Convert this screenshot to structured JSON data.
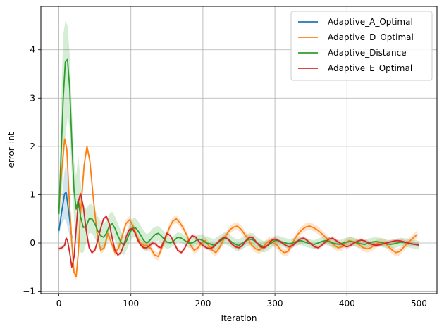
{
  "chart_data": {
    "type": "line",
    "title": "",
    "xlabel": "Iteration",
    "ylabel": "error_int",
    "xlim": [
      -25,
      525
    ],
    "ylim": [
      -1.05,
      4.9
    ],
    "xticks": [
      0,
      100,
      200,
      300,
      400,
      500
    ],
    "yticks": [
      -1,
      0,
      1,
      2,
      3,
      4
    ],
    "grid": true,
    "legend_position": "top-right",
    "series": [
      {
        "name": "Adaptive_A_Optimal",
        "color": "#1f77b4",
        "x": [
          0,
          4,
          8,
          10,
          14,
          18
        ],
        "y": [
          0.25,
          0.65,
          1.02,
          1.05,
          0.6,
          0.1
        ],
        "band_lower": [
          0.15,
          0.4,
          0.5,
          0.45,
          0.2,
          -0.1
        ],
        "band_upper": [
          0.35,
          0.9,
          1.5,
          1.65,
          1.0,
          0.3
        ]
      },
      {
        "name": "Adaptive_D_Optimal",
        "color": "#ff7f0e",
        "x": [
          0,
          4,
          8,
          11,
          14,
          18,
          21,
          24,
          27,
          30,
          35,
          39,
          43,
          48,
          53,
          58,
          63,
          68,
          73,
          78,
          83,
          88,
          93,
          98,
          103,
          108,
          113,
          118,
          123,
          128,
          133,
          138,
          143,
          148,
          153,
          158,
          163,
          168,
          173,
          178,
          183,
          188,
          193,
          198,
          203,
          208,
          213,
          218,
          223,
          228,
          233,
          238,
          243,
          248,
          253,
          258,
          263,
          268,
          273,
          278,
          283,
          288,
          293,
          298,
          303,
          308,
          313,
          318,
          323,
          328,
          333,
          338,
          343,
          348,
          353,
          358,
          363,
          368,
          373,
          378,
          383,
          388,
          393,
          398,
          403,
          408,
          413,
          418,
          423,
          428,
          433,
          438,
          443,
          448,
          453,
          458,
          463,
          468,
          473,
          478,
          483,
          488,
          493,
          498
        ],
        "y": [
          0.65,
          1.5,
          2.15,
          1.95,
          1.0,
          0.0,
          -0.6,
          -0.7,
          -0.2,
          0.6,
          1.6,
          2.0,
          1.7,
          0.9,
          0.2,
          -0.15,
          -0.1,
          0.2,
          0.0,
          -0.2,
          -0.1,
          0.15,
          0.4,
          0.48,
          0.35,
          0.15,
          0.0,
          -0.05,
          -0.05,
          -0.12,
          -0.25,
          -0.28,
          -0.1,
          0.1,
          0.3,
          0.45,
          0.5,
          0.42,
          0.3,
          0.15,
          -0.05,
          -0.15,
          -0.1,
          0.0,
          0.05,
          -0.05,
          -0.15,
          -0.2,
          -0.1,
          0.05,
          0.18,
          0.28,
          0.33,
          0.35,
          0.28,
          0.18,
          0.08,
          -0.05,
          -0.12,
          -0.15,
          -0.1,
          0.0,
          0.05,
          0.0,
          -0.05,
          -0.15,
          -0.2,
          -0.18,
          -0.05,
          0.1,
          0.2,
          0.28,
          0.33,
          0.35,
          0.32,
          0.28,
          0.22,
          0.15,
          0.08,
          0.0,
          -0.05,
          -0.1,
          -0.08,
          0.0,
          0.05,
          0.03,
          0.0,
          -0.05,
          -0.1,
          -0.12,
          -0.1,
          -0.05,
          0.0,
          0.02,
          0.0,
          -0.08,
          -0.15,
          -0.2,
          -0.18,
          -0.1,
          -0.02,
          0.05,
          0.12,
          0.18
        ],
        "band_width": 0.08
      },
      {
        "name": "Adaptive_Distance",
        "color": "#2ca02c",
        "x": [
          0,
          3,
          6,
          9,
          12,
          15,
          18,
          21,
          24,
          27,
          30,
          34,
          38,
          42,
          46,
          50,
          54,
          58,
          62,
          66,
          70,
          74,
          78,
          82,
          86,
          90,
          94,
          98,
          102,
          106,
          110,
          114,
          118,
          122,
          126,
          130,
          134,
          138,
          142,
          146,
          150,
          155,
          160,
          165,
          170,
          175,
          180,
          185,
          190,
          195,
          200,
          205,
          210,
          215,
          220,
          225,
          230,
          235,
          240,
          245,
          250,
          255,
          260,
          265,
          270,
          275,
          280,
          285,
          290,
          295,
          300,
          305,
          310,
          315,
          320,
          325,
          330,
          335,
          340,
          345,
          350,
          355,
          360,
          365,
          370,
          375,
          380,
          385,
          390,
          395,
          400,
          405,
          410,
          415,
          420,
          425,
          430,
          435,
          440,
          445,
          450,
          455,
          460,
          465,
          470,
          475,
          480,
          485,
          490,
          495,
          500
        ],
        "y": [
          0.6,
          1.8,
          3.0,
          3.75,
          3.8,
          3.2,
          2.1,
          1.1,
          0.7,
          0.9,
          0.55,
          0.32,
          0.35,
          0.5,
          0.5,
          0.4,
          0.25,
          0.15,
          0.12,
          0.2,
          0.35,
          0.4,
          0.3,
          0.15,
          0.02,
          -0.05,
          0.05,
          0.2,
          0.3,
          0.32,
          0.25,
          0.15,
          0.05,
          0.0,
          0.05,
          0.12,
          0.18,
          0.2,
          0.15,
          0.08,
          0.02,
          0.0,
          0.05,
          0.12,
          0.1,
          0.05,
          0.0,
          0.0,
          0.05,
          0.08,
          0.05,
          0.0,
          -0.02,
          -0.05,
          0.0,
          0.05,
          0.1,
          0.08,
          0.02,
          -0.03,
          -0.05,
          0.0,
          0.05,
          0.08,
          0.06,
          0.0,
          -0.05,
          -0.08,
          -0.05,
          0.0,
          0.05,
          0.05,
          0.02,
          0.0,
          -0.02,
          0.0,
          0.03,
          0.05,
          0.03,
          0.0,
          -0.02,
          -0.03,
          0.0,
          0.03,
          0.05,
          0.03,
          0.0,
          -0.02,
          -0.03,
          0.0,
          0.02,
          0.03,
          0.02,
          0.0,
          -0.02,
          -0.03,
          0.0,
          0.02,
          0.03,
          0.02,
          0.0,
          -0.02,
          -0.03,
          -0.02,
          0.0,
          0.02,
          0.01,
          0.0,
          -0.02,
          -0.03,
          -0.05
        ],
        "band_lower": [
          0.4,
          0.8,
          1.5,
          2.2,
          2.6,
          2.4,
          1.4,
          0.5,
          0.0,
          0.0,
          -0.2,
          -0.2,
          0.0,
          0.2,
          0.2,
          0.1,
          -0.05,
          -0.15,
          -0.15,
          -0.05,
          0.1,
          0.15,
          0.05,
          -0.1,
          -0.2,
          -0.25,
          -0.15,
          0.0,
          0.1,
          0.12,
          0.05,
          -0.05,
          -0.15,
          -0.18,
          -0.12,
          -0.05,
          0.02,
          0.05,
          0.0,
          -0.08,
          -0.12,
          -0.1,
          -0.05,
          0.02,
          0.0,
          -0.05,
          -0.1,
          -0.1,
          -0.05,
          -0.02,
          -0.08,
          -0.12,
          -0.15,
          -0.18,
          -0.12,
          -0.08,
          -0.02,
          -0.05,
          -0.1,
          -0.15,
          -0.18,
          -0.12,
          -0.08,
          -0.05,
          -0.08,
          -0.12,
          -0.17,
          -0.2,
          -0.16,
          -0.1,
          -0.05,
          -0.05,
          -0.08,
          -0.1,
          -0.12,
          -0.1,
          -0.06,
          -0.04,
          -0.06,
          -0.09,
          -0.11,
          -0.12,
          -0.09,
          -0.06,
          -0.04,
          -0.06,
          -0.09,
          -0.11,
          -0.12,
          -0.09,
          -0.07,
          -0.06,
          -0.07,
          -0.09,
          -0.11,
          -0.12,
          -0.09,
          -0.07,
          -0.06,
          -0.07,
          -0.09,
          -0.11,
          -0.12,
          -0.11,
          -0.09,
          -0.07,
          -0.08,
          -0.09,
          -0.11,
          -0.12,
          -0.14
        ],
        "band_upper": [
          0.8,
          2.8,
          4.3,
          4.6,
          4.5,
          3.9,
          2.8,
          1.7,
          1.4,
          1.8,
          1.3,
          0.8,
          0.7,
          0.8,
          0.8,
          0.7,
          0.55,
          0.45,
          0.4,
          0.45,
          0.6,
          0.65,
          0.55,
          0.4,
          0.25,
          0.15,
          0.25,
          0.4,
          0.5,
          0.52,
          0.45,
          0.35,
          0.25,
          0.18,
          0.22,
          0.3,
          0.34,
          0.35,
          0.3,
          0.24,
          0.16,
          0.1,
          0.15,
          0.22,
          0.2,
          0.15,
          0.1,
          0.1,
          0.15,
          0.18,
          0.18,
          0.12,
          0.11,
          0.08,
          0.12,
          0.18,
          0.22,
          0.21,
          0.14,
          0.09,
          0.08,
          0.12,
          0.18,
          0.21,
          0.2,
          0.12,
          0.07,
          0.04,
          0.06,
          0.1,
          0.15,
          0.15,
          0.12,
          0.1,
          0.08,
          0.1,
          0.12,
          0.14,
          0.12,
          0.09,
          0.07,
          0.06,
          0.09,
          0.12,
          0.14,
          0.12,
          0.09,
          0.07,
          0.06,
          0.09,
          0.11,
          0.12,
          0.11,
          0.09,
          0.07,
          0.06,
          0.09,
          0.11,
          0.12,
          0.11,
          0.09,
          0.07,
          0.06,
          0.07,
          0.09,
          0.11,
          0.1,
          0.09,
          0.07,
          0.06,
          0.04
        ]
      },
      {
        "name": "Adaptive_E_Optimal",
        "color": "#d62728",
        "x": [
          0,
          4,
          8,
          10,
          12,
          15,
          18,
          21,
          24,
          27,
          30,
          34,
          38,
          42,
          46,
          50,
          54,
          58,
          62,
          66,
          70,
          74,
          78,
          82,
          86,
          90,
          94,
          98,
          102,
          106,
          110,
          114,
          118,
          122,
          126,
          130,
          134,
          138,
          142,
          146,
          150,
          155,
          160,
          165,
          170,
          175,
          180,
          185,
          190,
          195,
          200,
          205,
          210,
          215,
          220,
          225,
          230,
          235,
          240,
          245,
          250,
          255,
          260,
          265,
          270,
          275,
          280,
          285,
          290,
          295,
          300,
          305,
          310,
          315,
          320,
          325,
          330,
          335,
          340,
          345,
          350,
          355,
          360,
          365,
          370,
          375,
          380,
          385,
          390,
          395,
          400,
          405,
          410,
          415,
          420,
          425,
          430,
          435,
          440,
          445,
          450,
          455,
          460,
          465,
          470,
          475,
          480,
          485,
          490,
          495,
          500
        ],
        "y": [
          -0.12,
          -0.1,
          -0.05,
          0.1,
          0.05,
          -0.2,
          -0.5,
          -0.3,
          0.3,
          0.85,
          1.02,
          0.75,
          0.25,
          -0.1,
          -0.2,
          -0.15,
          0.05,
          0.3,
          0.5,
          0.55,
          0.4,
          0.1,
          -0.15,
          -0.25,
          -0.2,
          -0.05,
          0.15,
          0.28,
          0.3,
          0.2,
          0.05,
          -0.05,
          -0.1,
          -0.1,
          -0.05,
          0.0,
          -0.02,
          -0.08,
          -0.1,
          0.05,
          0.2,
          0.15,
          0.0,
          -0.15,
          -0.2,
          -0.1,
          0.05,
          0.15,
          0.12,
          0.02,
          -0.05,
          -0.1,
          -0.12,
          -0.08,
          0.0,
          0.08,
          0.12,
          0.08,
          -0.02,
          -0.08,
          -0.1,
          -0.05,
          0.05,
          0.12,
          0.1,
          0.0,
          -0.08,
          -0.1,
          -0.05,
          0.05,
          0.08,
          0.05,
          0.0,
          -0.05,
          -0.08,
          -0.05,
          0.02,
          0.08,
          0.1,
          0.05,
          -0.02,
          -0.08,
          -0.1,
          -0.05,
          0.02,
          0.08,
          0.1,
          0.05,
          0.0,
          -0.05,
          -0.08,
          -0.05,
          0.0,
          0.04,
          0.06,
          0.04,
          0.0,
          -0.03,
          -0.05,
          -0.04,
          -0.02,
          0.0,
          0.02,
          0.04,
          0.05,
          0.04,
          0.02,
          0.0,
          -0.02,
          -0.03,
          -0.04
        ],
        "band_width": 0.04
      }
    ]
  }
}
